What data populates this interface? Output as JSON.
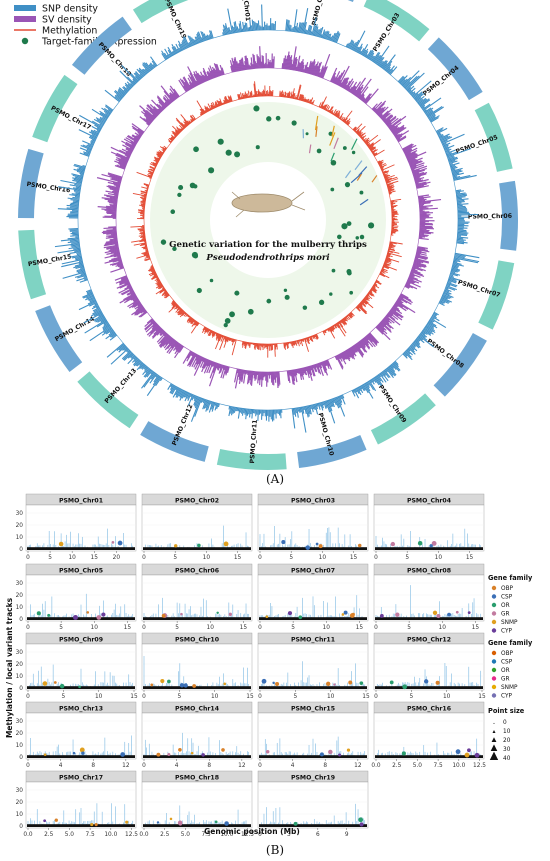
{
  "colors": {
    "snp": "#3f8fc5",
    "sv": "#9a55b5",
    "methylation": "#e34a33",
    "expression": "#1f7a4c",
    "chr_blue": "#6fa7d3",
    "chr_teal": "#7fd3c3",
    "panel_strip": "#d9d9d9",
    "bar_light": "#8fc3e6",
    "baseline": "#111111"
  },
  "panelA": {
    "label": "(A)",
    "legend": [
      {
        "key": "snp",
        "label": "SNP density"
      },
      {
        "key": "sv",
        "label": "SV density"
      },
      {
        "key": "methylation",
        "label": "Methylation"
      },
      {
        "key": "expression",
        "label": "Target-family expression"
      }
    ],
    "center_title": "Genetic variation for the mulberry thrips",
    "center_subtitle": "Pseudodendrothrips mori",
    "chromosomes": [
      "PSMO_Chr01",
      "PSMO_Chr02",
      "PSMO_Chr03",
      "PSMO_Chr04",
      "PSMO_Chr05",
      "PSMO_Chr06",
      "PSMO_Chr07",
      "PSMO_Chr08",
      "PSMO_Chr09",
      "PSMO_Chr10",
      "PSMO_Chr11",
      "PSMO_Chr12",
      "PSMO_Chr13",
      "PSMO_Chr14",
      "PSMO_Chr15",
      "PSMO_Chr16",
      "PSMO_Chr17",
      "PSMO_Chr18",
      "PSMO_Chr19"
    ]
  },
  "panelB": {
    "label": "(B)",
    "ylabel": "Methylation / local variant tracks",
    "xlabel": "Genomic position (Mb)",
    "yticks": [
      "0",
      "10",
      "20",
      "30"
    ],
    "ylim": [
      0,
      35
    ],
    "legend_family_1": {
      "title": "Gene family",
      "items": [
        {
          "name": "OBP",
          "color": "#d9822b"
        },
        {
          "name": "CSP",
          "color": "#3b6fb6"
        },
        {
          "name": "OR",
          "color": "#2a9d6e"
        },
        {
          "name": "GR",
          "color": "#c27ba0"
        },
        {
          "name": "SNMP",
          "color": "#e0a020"
        },
        {
          "name": "CYP",
          "color": "#6a3d9a"
        }
      ]
    },
    "legend_family_2": {
      "title": "Gene family",
      "items": [
        {
          "name": "OBP",
          "color": "#d95f02"
        },
        {
          "name": "CSP",
          "color": "#1f78b4"
        },
        {
          "name": "OR",
          "color": "#33a02c"
        },
        {
          "name": "GR",
          "color": "#e7298a"
        },
        {
          "name": "SNMP",
          "color": "#e6ab02"
        },
        {
          "name": "CYP",
          "color": "#7570b3"
        }
      ]
    },
    "legend_size": {
      "title": "Point size",
      "items": [
        "0",
        "10",
        "20",
        "30",
        "40"
      ]
    },
    "panels": [
      {
        "name": "PSMO_Chr01",
        "xticks": [
          "0",
          "5",
          "10",
          "15",
          "20"
        ],
        "xmax": 24
      },
      {
        "name": "PSMO_Chr02",
        "xticks": [
          "0",
          "5",
          "10",
          "15"
        ],
        "xmax": 17
      },
      {
        "name": "PSMO_Chr03",
        "xticks": [
          "0",
          "5",
          "10",
          "15"
        ],
        "xmax": 17
      },
      {
        "name": "PSMO_Chr04",
        "xticks": [
          "0",
          "5",
          "10",
          "15"
        ],
        "xmax": 17
      },
      {
        "name": "PSMO_Chr05",
        "xticks": [
          "0",
          "5",
          "10",
          "15"
        ],
        "xmax": 16
      },
      {
        "name": "PSMO_Chr06",
        "xticks": [
          "0",
          "5",
          "10",
          "15"
        ],
        "xmax": 16
      },
      {
        "name": "PSMO_Chr07",
        "xticks": [
          "0",
          "5",
          "10",
          "15"
        ],
        "xmax": 16
      },
      {
        "name": "PSMO_Chr08",
        "xticks": [
          "0",
          "5",
          "10",
          "15"
        ],
        "xmax": 16
      },
      {
        "name": "PSMO_Chr09",
        "xticks": [
          "0",
          "5",
          "10",
          "15"
        ],
        "xmax": 15
      },
      {
        "name": "PSMO_Chr10",
        "xticks": [
          "0",
          "5",
          "10",
          "15"
        ],
        "xmax": 15
      },
      {
        "name": "PSMO_Chr11",
        "xticks": [
          "0",
          "5",
          "10",
          "15"
        ],
        "xmax": 15
      },
      {
        "name": "PSMO_Chr12",
        "xticks": [
          "0",
          "5",
          "10",
          "15"
        ],
        "xmax": 15
      },
      {
        "name": "PSMO_Chr13",
        "xticks": [
          "0",
          "4",
          "8",
          "12"
        ],
        "xmax": 13
      },
      {
        "name": "PSMO_Chr14",
        "xticks": [
          "0",
          "4",
          "8",
          "12"
        ],
        "xmax": 13
      },
      {
        "name": "PSMO_Chr15",
        "xticks": [
          "0",
          "4",
          "8",
          "12"
        ],
        "xmax": 13
      },
      {
        "name": "PSMO_Chr16",
        "xticks": [
          "0.0",
          "2.5",
          "5.0",
          "7.5",
          "10.0",
          "12.5"
        ],
        "xmax": 12.8
      },
      {
        "name": "PSMO_Chr17",
        "xticks": [
          "0.0",
          "2.5",
          "5.0",
          "7.5",
          "10.0",
          "12.5"
        ],
        "xmax": 12.8
      },
      {
        "name": "PSMO_Chr18",
        "xticks": [
          "0.0",
          "2.5",
          "5.0",
          "7.5",
          "10.0",
          "12.5"
        ],
        "xmax": 12.8
      },
      {
        "name": "PSMO_Chr19",
        "xticks": [
          "0",
          "3",
          "6",
          "9"
        ],
        "xmax": 11
      }
    ]
  }
}
